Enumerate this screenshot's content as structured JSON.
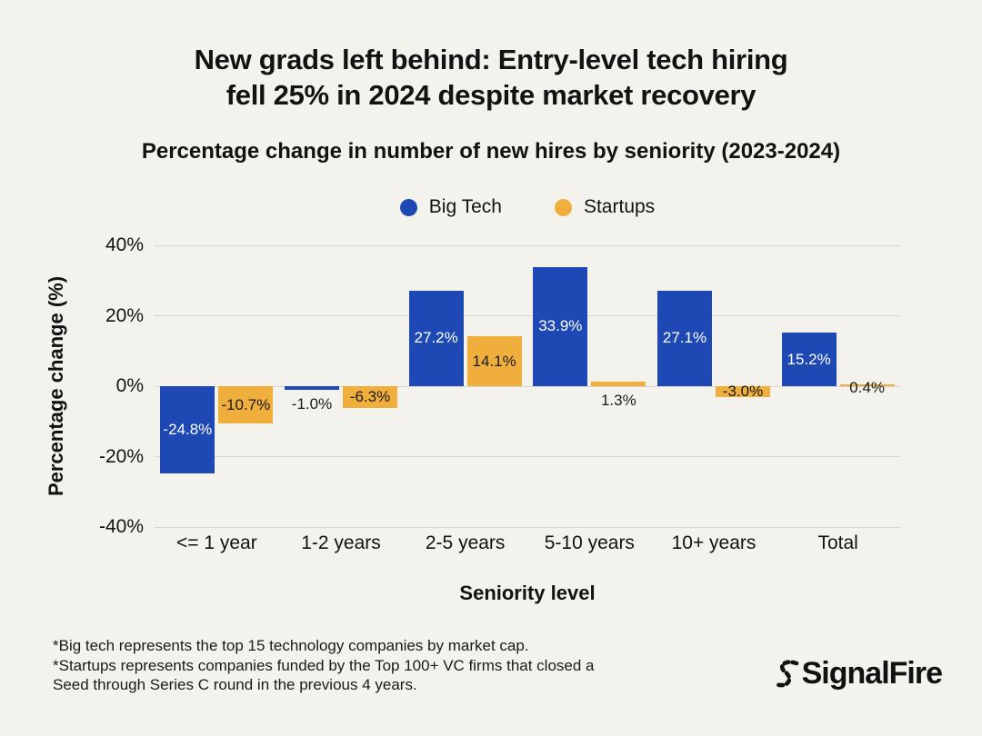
{
  "page": {
    "background": "#F4F2ED",
    "text_color": "#121212",
    "grid_color": "#D7D4CD"
  },
  "chart_data": {
    "type": "bar",
    "title": "New grads left behind: Entry-level tech hiring fell 25% in 2024 despite market recovery",
    "title_lines": [
      "New grads left behind: Entry-level tech hiring",
      "fell 25% in 2024 despite market recovery"
    ],
    "subtitle": "Percentage change in number of new hires by seniority (2023-2024)",
    "xlabel": "Seniority level",
    "ylabel": "Percentage change (%)",
    "categories": [
      "<= 1 year",
      "1-2 years",
      "2-5 years",
      "5-10 years",
      "10+ years",
      "Total"
    ],
    "series": [
      {
        "name": "Big Tech",
        "color": "#1E49B5",
        "label_color": "#FFFFFF",
        "values": [
          -24.8,
          -1.0,
          27.2,
          33.9,
          27.1,
          15.2
        ],
        "data_labels": [
          "-24.8%",
          "-1.0%",
          "27.2%",
          "33.9%",
          "27.1%",
          "15.2%"
        ],
        "label_placement": [
          "inside",
          "below",
          "inside",
          "inside",
          "inside",
          "inside"
        ],
        "outside_label_color": "#1A1A1A"
      },
      {
        "name": "Startups",
        "color": "#F0AE3D",
        "label_color": "#1A1A1A",
        "values": [
          -10.7,
          -6.3,
          14.1,
          1.3,
          -3.0,
          0.4
        ],
        "data_labels": [
          "-10.7%",
          "-6.3%",
          "14.1%",
          "1.3%",
          "-3.0%",
          "0.4%"
        ],
        "label_placement": [
          "inside",
          "inside",
          "inside",
          "below",
          "inside",
          "above"
        ],
        "outside_label_color": "#1A1A1A"
      }
    ],
    "yticks": [
      40,
      20,
      0,
      -20,
      -40
    ],
    "ytick_labels": [
      "40%",
      "20%",
      "0%",
      "-20%",
      "-40%"
    ],
    "ylim": [
      -40,
      40
    ],
    "grid": true,
    "legend_position": "top-center"
  },
  "footnotes": [
    "*Big tech represents the top 15 technology companies by market cap.",
    "*Startups represents companies funded by the Top 100+ VC firms that closed a",
    "Seed through Series C round in the previous 4 years."
  ],
  "logo": {
    "text": "SignalFire"
  }
}
